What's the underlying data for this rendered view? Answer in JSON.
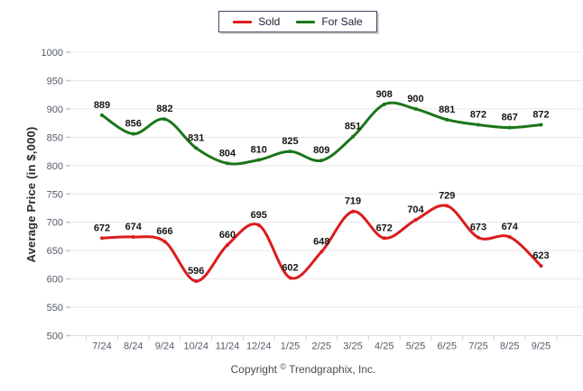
{
  "legend": {
    "items": [
      {
        "label": "Sold",
        "color": "#dc1c1c"
      },
      {
        "label": "For Sale",
        "color": "#1a751a"
      }
    ]
  },
  "chart_data": {
    "type": "line",
    "x": [
      "7/24",
      "8/24",
      "9/24",
      "10/24",
      "11/24",
      "12/24",
      "1/25",
      "2/25",
      "3/25",
      "4/25",
      "5/25",
      "6/25",
      "7/25",
      "8/25",
      "9/25"
    ],
    "series": [
      {
        "name": "Sold",
        "color": "#dc1c1c",
        "values": [
          672,
          674,
          666,
          596,
          660,
          695,
          602,
          648,
          719,
          672,
          704,
          729,
          673,
          674,
          623
        ]
      },
      {
        "name": "For Sale",
        "color": "#1a751a",
        "values": [
          889,
          856,
          882,
          831,
          804,
          810,
          825,
          809,
          851,
          908,
          900,
          881,
          872,
          867,
          872
        ]
      }
    ],
    "title": "",
    "xlabel": "",
    "ylabel": "Average Price (in $,000)",
    "ylim": [
      500,
      1000
    ],
    "ytick_step": 50,
    "yticks": [
      500,
      550,
      600,
      650,
      700,
      750,
      800,
      850,
      900,
      950,
      1000
    ],
    "grid": true,
    "smooth": true,
    "data_labels": true,
    "legend_position": "top-center"
  },
  "colors": {
    "grid": "#e8e8e8",
    "baseline": "#dedede",
    "y_tick_mark": "#b7c9dd",
    "x_tick_mark": "#ccd4dc",
    "axis_text": "#545b68",
    "data_label_text": "#161616"
  },
  "footer": {
    "copyright_prefix": "Copyright",
    "copyright_symbol": "©",
    "copyright_suffix": "Trendgraphix, Inc."
  }
}
